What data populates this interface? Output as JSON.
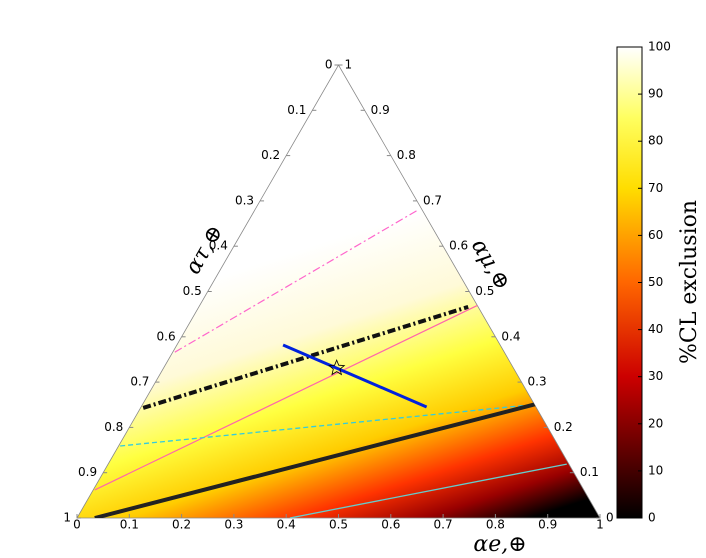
{
  "chart_data": {
    "type": "ternary",
    "axes": {
      "bottom": {
        "label": "αe,⊕",
        "ticks": [
          0,
          0.1,
          0.2,
          0.3,
          0.4,
          0.5,
          0.6,
          0.7,
          0.8,
          0.9,
          1
        ]
      },
      "left": {
        "label": "ατ,⊕",
        "ticks": [
          0,
          0.1,
          0.2,
          0.3,
          0.4,
          0.5,
          0.6,
          0.7,
          0.8,
          0.9,
          1
        ]
      },
      "right": {
        "label": "αμ,⊕",
        "ticks": [
          0,
          0.1,
          0.2,
          0.3,
          0.4,
          0.5,
          0.6,
          0.7,
          0.8,
          0.9,
          1
        ]
      }
    },
    "colorbar": {
      "label": "%CL exclusion",
      "lim": [
        0,
        100
      ],
      "ticks": [
        0,
        10,
        20,
        30,
        40,
        50,
        60,
        70,
        80,
        90,
        100
      ]
    },
    "series": [
      {
        "color": "#ff66cc",
        "style": "dashdot",
        "width": 1.2,
        "ae": [
          0.004,
          0.312
        ],
        "amu": [
          0.366,
          0.68
        ]
      },
      {
        "color": "#111111",
        "style": "dashdot",
        "width": 4,
        "ae": [
          0.005,
          0.515
        ],
        "amu": [
          0.243,
          0.466
        ]
      },
      {
        "color": "#ff66aa",
        "style": "solid",
        "width": 1.2,
        "ae": [
          0.003,
          0.532
        ],
        "amu": [
          0.062,
          0.47
        ]
      },
      {
        "color": "#33ccdd",
        "style": "dashed",
        "width": 1.3,
        "ae": [
          0.003,
          0.736
        ],
        "amu": [
          0.159,
          0.249
        ]
      },
      {
        "color": "#222222",
        "style": "solid",
        "width": 4,
        "ae": [
          0.034,
          0.776
        ],
        "amu": [
          0,
          0.26
        ]
      },
      {
        "color": "#66cccc",
        "style": "solid",
        "width": 1.3,
        "ae": [
          0.407,
          0.877
        ],
        "amu": [
          0,
          0.119
        ]
      },
      {
        "color": "#0022dd",
        "style": "solid",
        "width": 3,
        "ae": [
          0.203,
          0.546
        ],
        "amu": [
          0.382,
          0.245
        ]
      }
    ],
    "best_fit": {
      "ae": 0.331,
      "amu": 0.331
    }
  }
}
